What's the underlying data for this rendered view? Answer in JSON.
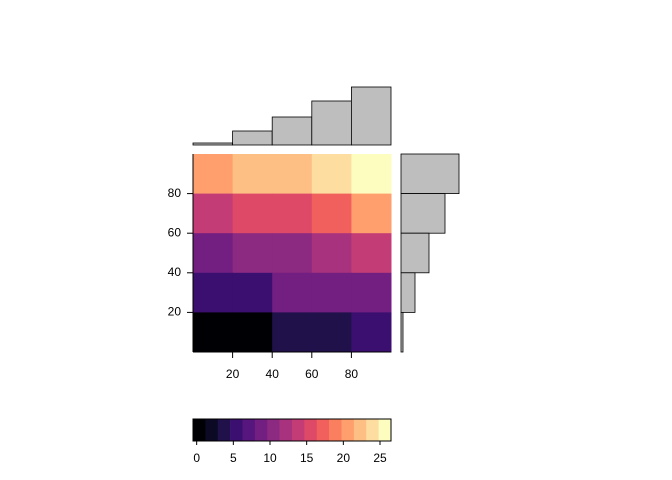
{
  "chart_data": {
    "type": "heatmap",
    "x": [
      10,
      30,
      50,
      70,
      90
    ],
    "y": [
      10,
      30,
      50,
      70,
      90
    ],
    "z": [
      [
        20,
        22,
        22,
        24,
        26
      ],
      [
        13,
        16,
        16,
        18,
        20
      ],
      [
        9,
        10,
        10,
        12,
        14
      ],
      [
        5,
        6,
        8,
        8,
        9
      ],
      [
        0,
        1,
        3,
        3,
        5
      ]
    ],
    "xlim": [
      0,
      100
    ],
    "ylim": [
      0,
      100
    ],
    "xticks": [
      20,
      40,
      60,
      80
    ],
    "yticks": [
      20,
      40,
      60,
      80
    ],
    "top_margin": [
      1,
      7,
      14,
      22,
      29
    ],
    "right_margin": [
      29,
      22,
      14,
      7,
      1
    ],
    "margin_lim": [
      0,
      30
    ],
    "colorlim": [
      -0.5,
      26.5
    ],
    "colorticks": [
      0,
      5,
      10,
      15,
      20,
      25
    ],
    "palette": [
      "#000004",
      "#0B0924",
      "#20114B",
      "#3B0F70",
      "#57157E",
      "#721F81",
      "#8C2981",
      "#A8327D",
      "#C43C75",
      "#DE4968",
      "#F1605D",
      "#FA7F5E",
      "#FE9F6D",
      "#FEBF84",
      "#FDDEA0",
      "#FCFDBF"
    ],
    "margin_color": "#BEBEBE"
  }
}
